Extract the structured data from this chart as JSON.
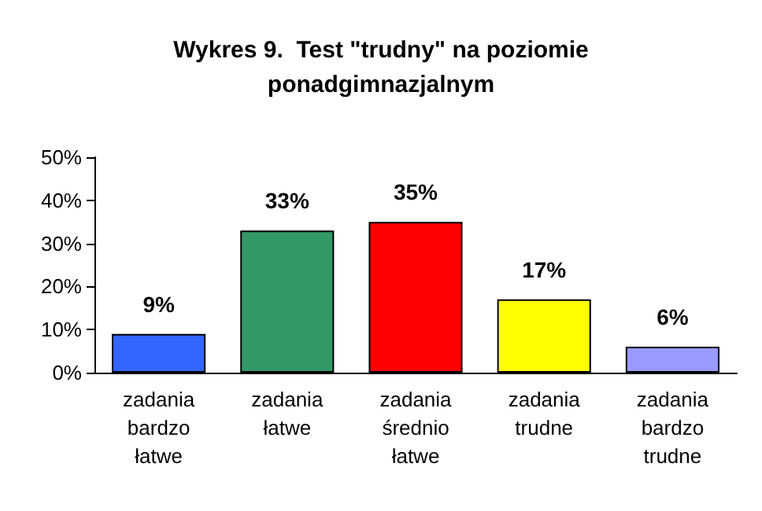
{
  "chart_data": {
    "type": "bar",
    "title": "Wykres 9.  Test \"trudny\" na poziomie\nponadgimnazjalnym",
    "categories": [
      "zadania\nbardzo\nłatwe",
      "zadania\nłatwe",
      "zadania\nśrednio\nłatwe",
      "zadania\ntrudne",
      "zadania\nbardzo\ntrudne"
    ],
    "values": [
      9,
      33,
      35,
      17,
      6
    ],
    "value_labels": [
      "9%",
      "33%",
      "35%",
      "17%",
      "6%"
    ],
    "colors": [
      "#3366ff",
      "#339966",
      "#ff0000",
      "#ffff00",
      "#9999ff"
    ],
    "ylim": [
      0,
      50
    ],
    "yticks": [
      {
        "value": 0,
        "label": "0%"
      },
      {
        "value": 10,
        "label": "10%"
      },
      {
        "value": 20,
        "label": "20%"
      },
      {
        "value": 30,
        "label": "30%"
      },
      {
        "value": 40,
        "label": "40%"
      },
      {
        "value": 50,
        "label": "50%"
      }
    ],
    "grid": false
  }
}
